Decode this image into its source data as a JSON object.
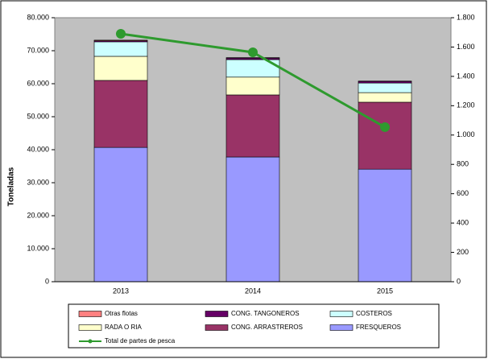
{
  "chart_data": {
    "type": "bar",
    "stacked": true,
    "y_label": "Toneladas",
    "categories": [
      "2013",
      "2014",
      "2015"
    ],
    "series": [
      {
        "name": "Otras flotas",
        "color": "#ff8080",
        "values": [
          200,
          100,
          100
        ]
      },
      {
        "name": "CONG. TANGONEROS",
        "color": "#660066",
        "values": [
          300,
          500,
          500
        ]
      },
      {
        "name": "COSTEROS",
        "color": "#ccffff",
        "values": [
          4400,
          5300,
          2900
        ]
      },
      {
        "name": "RADA O RIA",
        "color": "#ffffcc",
        "values": [
          7300,
          5400,
          2900
        ]
      },
      {
        "name": "CONG. ARRASTREROS",
        "color": "#993366",
        "values": [
          20300,
          18800,
          20300
        ]
      },
      {
        "name": "FRESQUEROS",
        "color": "#9999ff",
        "values": [
          40700,
          37800,
          34100
        ]
      },
      {
        "name": "Total de partes de pesca",
        "color": "#2e9a2e",
        "type": "line",
        "axis": "y2",
        "values": [
          1690,
          1564,
          1054
        ]
      }
    ],
    "ylim": [
      0,
      80000
    ],
    "yticks": [
      {
        "value": 0,
        "label": "0"
      },
      {
        "value": 10000,
        "label": "10.000"
      },
      {
        "value": 20000,
        "label": "20.000"
      },
      {
        "value": 30000,
        "label": "30.000"
      },
      {
        "value": 40000,
        "label": "40.000"
      },
      {
        "value": 50000,
        "label": "50.000"
      },
      {
        "value": 60000,
        "label": "60.000"
      },
      {
        "value": 70000,
        "label": "70.000"
      },
      {
        "value": 80000,
        "label": "80.000"
      }
    ],
    "y2lim": [
      0,
      1800
    ],
    "y2ticks": [
      0,
      200,
      400,
      600,
      800,
      {
        "value": 1000,
        "label": "1.000"
      },
      {
        "value": 1200,
        "label": "1.200"
      },
      {
        "value": 1400,
        "label": "1.400"
      },
      {
        "value": 1600,
        "label": "1.600"
      },
      {
        "value": 1800,
        "label": "1.800"
      }
    ],
    "background": "#c0c0c0"
  }
}
